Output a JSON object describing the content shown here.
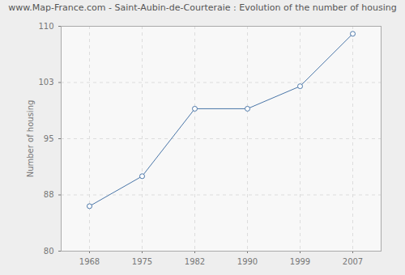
{
  "chart_data": {
    "type": "line",
    "title": "www.Map-France.com - Saint-Aubin-de-Courteraie : Evolution of the number of housing",
    "y_label": "Number of housing",
    "categories": [
      "1968",
      "1975",
      "1982",
      "1990",
      "1999",
      "2007"
    ],
    "values": [
      86,
      90,
      99,
      99,
      102,
      109
    ],
    "color": "#4a76a8",
    "marker": "circle",
    "ylim": [
      80,
      110
    ],
    "yticks": [
      80,
      {
        "value": 87.5,
        "label": "88"
      },
      95,
      {
        "value": 102.5,
        "label": "103"
      },
      110
    ],
    "grid": true
  }
}
